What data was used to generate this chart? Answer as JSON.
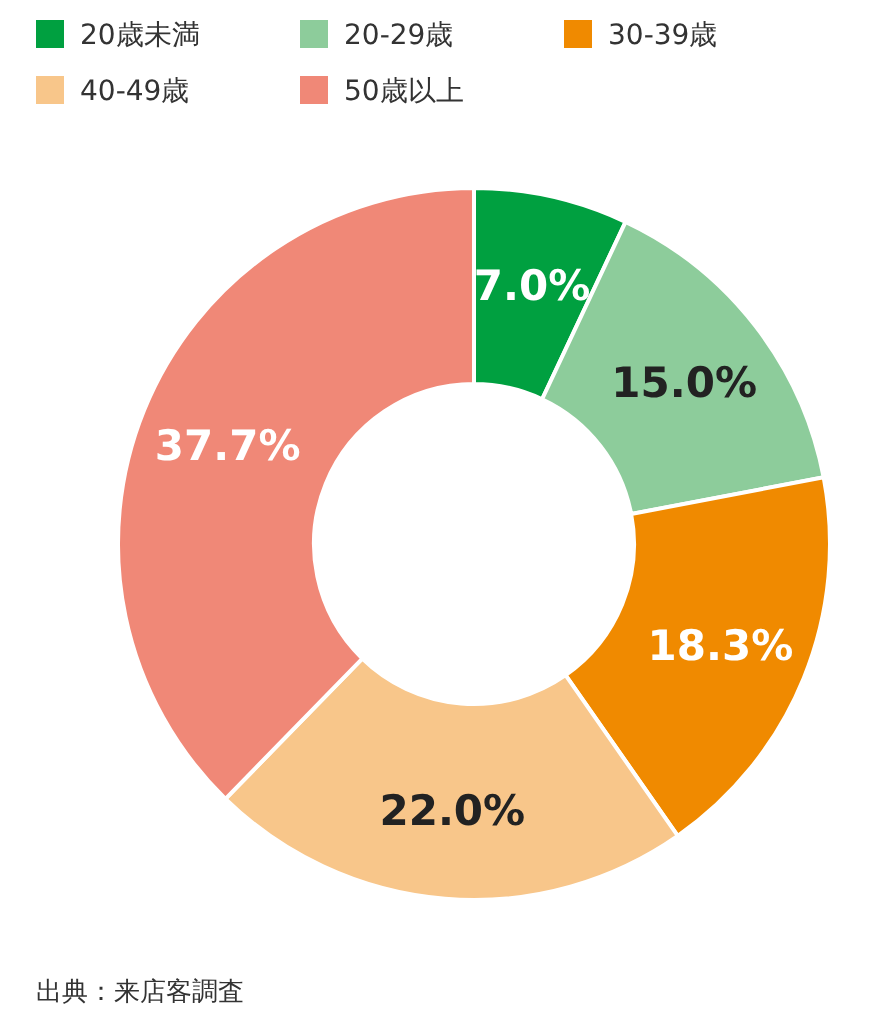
{
  "chart_data": {
    "type": "donut",
    "categories": [
      "20歳未満",
      "20-29歳",
      "30-39歳",
      "40-49歳",
      "50歳以上"
    ],
    "values": [
      7.0,
      15.0,
      18.3,
      22.0,
      37.7
    ],
    "colors": [
      "#00a040",
      "#8dcc9b",
      "#f08a00",
      "#f8c68a",
      "#f08877"
    ],
    "value_labels": [
      "7.0%",
      "15.0%",
      "18.3%",
      "22.0%",
      "37.7%"
    ],
    "legend": "top left",
    "annotations": [
      "出典：来店客調査"
    ]
  }
}
